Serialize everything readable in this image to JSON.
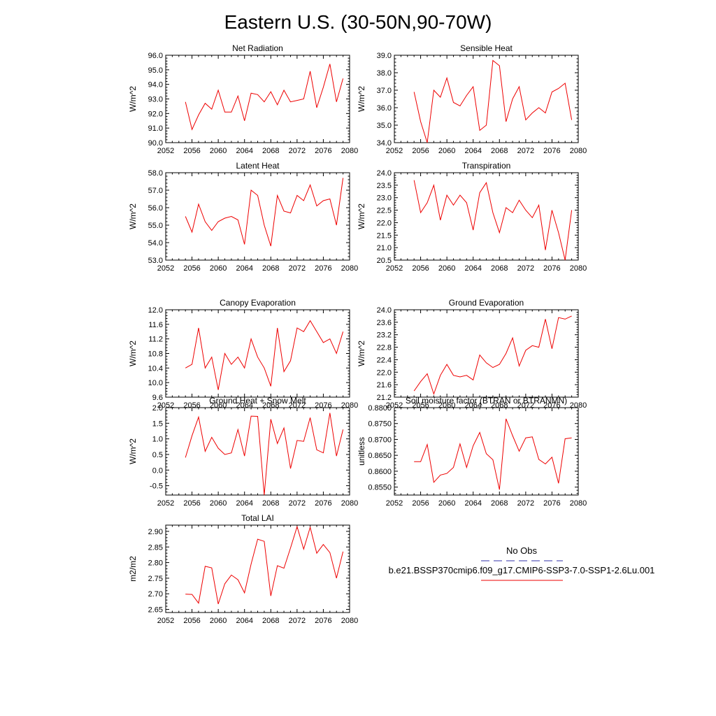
{
  "figure_title": "Eastern U.S. (30-50N,90-70W)",
  "legend": {
    "obs_label": "No Obs",
    "obs_color": "#3333aa",
    "case_label": "b.e21.BSSP370cmip6.f09_g17.CMIP6-SSP3-7.0-SSP1-2.6Lu.001",
    "case_color": "#ee0000"
  },
  "chart_data": [
    {
      "type": "line",
      "title": "Net Radiation",
      "ylabel": "W/m^2",
      "xlim": [
        2052,
        2080
      ],
      "ylim": [
        90,
        96
      ],
      "xticks": [
        2052,
        2056,
        2060,
        2064,
        2068,
        2072,
        2076,
        2080
      ],
      "yticks": [
        "90.0",
        "91.0",
        "92.0",
        "93.0",
        "94.0",
        "95.0",
        "96.0"
      ],
      "series": [
        {
          "color": "#ee0000",
          "x": [
            2055,
            2056,
            2057,
            2058,
            2059,
            2060,
            2061,
            2062,
            2063,
            2064,
            2065,
            2066,
            2067,
            2068,
            2069,
            2070,
            2071,
            2072,
            2073,
            2074,
            2075,
            2076,
            2077,
            2078,
            2079
          ],
          "y": [
            92.8,
            90.9,
            91.9,
            92.7,
            92.3,
            93.6,
            92.1,
            92.1,
            93.2,
            91.5,
            93.4,
            93.3,
            92.8,
            93.5,
            92.6,
            93.6,
            92.8,
            92.9,
            93.0,
            94.9,
            92.4,
            93.8,
            95.4,
            92.8,
            94.4
          ]
        }
      ]
    },
    {
      "type": "line",
      "title": "Sensible Heat",
      "ylabel": "W/m^2",
      "xlim": [
        2052,
        2080
      ],
      "ylim": [
        34,
        39
      ],
      "xticks": [
        2052,
        2056,
        2060,
        2064,
        2068,
        2072,
        2076,
        2080
      ],
      "yticks": [
        "34.0",
        "35.0",
        "36.0",
        "37.0",
        "38.0",
        "39.0"
      ],
      "series": [
        {
          "color": "#ee0000",
          "x": [
            2055,
            2056,
            2057,
            2058,
            2059,
            2060,
            2061,
            2062,
            2063,
            2064,
            2065,
            2066,
            2067,
            2068,
            2069,
            2070,
            2071,
            2072,
            2073,
            2074,
            2075,
            2076,
            2077,
            2078,
            2079
          ],
          "y": [
            36.9,
            35.2,
            34.0,
            37.0,
            36.6,
            37.7,
            36.3,
            36.1,
            36.7,
            37.2,
            34.7,
            35.0,
            38.7,
            38.4,
            35.2,
            36.5,
            37.2,
            35.3,
            35.7,
            36.0,
            35.7,
            36.9,
            37.1,
            37.4,
            35.3
          ]
        }
      ]
    },
    {
      "type": "line",
      "title": "Latent Heat",
      "ylabel": "W/m^2",
      "xlim": [
        2052,
        2080
      ],
      "ylim": [
        53,
        58
      ],
      "xticks": [
        2052,
        2056,
        2060,
        2064,
        2068,
        2072,
        2076,
        2080
      ],
      "yticks": [
        "53.0",
        "54.0",
        "55.0",
        "56.0",
        "57.0",
        "58.0"
      ],
      "series": [
        {
          "color": "#ee0000",
          "x": [
            2055,
            2056,
            2057,
            2058,
            2059,
            2060,
            2061,
            2062,
            2063,
            2064,
            2065,
            2066,
            2067,
            2068,
            2069,
            2070,
            2071,
            2072,
            2073,
            2074,
            2075,
            2076,
            2077,
            2078,
            2079
          ],
          "y": [
            55.5,
            54.6,
            56.2,
            55.2,
            54.7,
            55.2,
            55.4,
            55.5,
            55.3,
            53.9,
            57.0,
            56.7,
            55.0,
            53.8,
            56.7,
            55.8,
            55.7,
            56.7,
            56.4,
            57.3,
            56.1,
            56.4,
            56.5,
            55.0,
            57.7
          ]
        }
      ]
    },
    {
      "type": "line",
      "title": "Transpiration",
      "ylabel": "W/m^2",
      "xlim": [
        2052,
        2080
      ],
      "ylim": [
        20.5,
        24
      ],
      "xticks": [
        2052,
        2056,
        2060,
        2064,
        2068,
        2072,
        2076,
        2080
      ],
      "yticks": [
        "20.5",
        "21.0",
        "21.5",
        "22.0",
        "22.5",
        "23.0",
        "23.5",
        "24.0"
      ],
      "series": [
        {
          "color": "#ee0000",
          "x": [
            2055,
            2056,
            2057,
            2058,
            2059,
            2060,
            2061,
            2062,
            2063,
            2064,
            2065,
            2066,
            2067,
            2068,
            2069,
            2070,
            2071,
            2072,
            2073,
            2074,
            2075,
            2076,
            2077,
            2078,
            2079
          ],
          "y": [
            23.7,
            22.4,
            22.8,
            23.5,
            22.1,
            23.1,
            22.7,
            23.1,
            22.8,
            21.7,
            23.2,
            23.6,
            22.4,
            21.6,
            22.6,
            22.4,
            22.9,
            22.5,
            22.2,
            22.7,
            20.9,
            22.5,
            21.6,
            20.5,
            22.5
          ]
        }
      ]
    },
    {
      "type": "line",
      "title": "Canopy Evaporation",
      "ylabel": "W/m^2",
      "xlim": [
        2052,
        2080
      ],
      "ylim": [
        9.6,
        12
      ],
      "xticks": [
        2052,
        2056,
        2060,
        2064,
        2068,
        2072,
        2076,
        2080
      ],
      "yticks": [
        "9.6",
        "10.0",
        "10.4",
        "10.8",
        "11.2",
        "11.6",
        "12.0"
      ],
      "series": [
        {
          "color": "#ee0000",
          "x": [
            2055,
            2056,
            2057,
            2058,
            2059,
            2060,
            2061,
            2062,
            2063,
            2064,
            2065,
            2066,
            2067,
            2068,
            2069,
            2070,
            2071,
            2072,
            2073,
            2074,
            2075,
            2076,
            2077,
            2078,
            2079
          ],
          "y": [
            10.4,
            10.5,
            11.5,
            10.4,
            10.7,
            9.8,
            10.8,
            10.5,
            10.7,
            10.4,
            11.2,
            10.7,
            10.4,
            9.9,
            11.5,
            10.3,
            10.6,
            11.5,
            11.4,
            11.7,
            11.4,
            11.1,
            11.2,
            10.8,
            11.4
          ]
        }
      ]
    },
    {
      "type": "line",
      "title": "Ground Evaporation",
      "ylabel": "W/m^2",
      "xlim": [
        2052,
        2080
      ],
      "ylim": [
        21.2,
        24
      ],
      "xticks": [
        2052,
        2056,
        2060,
        2064,
        2068,
        2072,
        2076,
        2080
      ],
      "yticks": [
        "21.2",
        "21.6",
        "22.0",
        "22.4",
        "22.8",
        "23.2",
        "23.6",
        "24.0"
      ],
      "series": [
        {
          "color": "#ee0000",
          "x": [
            2055,
            2056,
            2057,
            2058,
            2059,
            2060,
            2061,
            2062,
            2063,
            2064,
            2065,
            2066,
            2067,
            2068,
            2069,
            2070,
            2071,
            2072,
            2073,
            2074,
            2075,
            2076,
            2077,
            2078,
            2079
          ],
          "y": [
            21.4,
            21.7,
            21.95,
            21.3,
            21.9,
            22.25,
            21.9,
            21.85,
            21.9,
            21.75,
            22.55,
            22.3,
            22.15,
            22.25,
            22.6,
            23.1,
            22.2,
            22.7,
            22.85,
            22.8,
            23.7,
            22.75,
            23.75,
            23.7,
            23.8
          ]
        }
      ]
    },
    {
      "type": "line",
      "title": "Ground Heat + Snow Melt",
      "ylabel": "W/m^2",
      "xlim": [
        2052,
        2080
      ],
      "ylim": [
        -0.8,
        2
      ],
      "xticks": [
        2052,
        2056,
        2060,
        2064,
        2068,
        2072,
        2076,
        2080
      ],
      "yticks": [
        "-0.5",
        "0.0",
        "0.5",
        "1.0",
        "1.5",
        "2.0"
      ],
      "series": [
        {
          "color": "#ee0000",
          "x": [
            2055,
            2056,
            2057,
            2058,
            2059,
            2060,
            2061,
            2062,
            2063,
            2064,
            2065,
            2066,
            2067,
            2068,
            2069,
            2070,
            2071,
            2072,
            2073,
            2074,
            2075,
            2076,
            2077,
            2078,
            2079
          ],
          "y": [
            0.4,
            1.1,
            1.7,
            0.6,
            1.05,
            0.7,
            0.5,
            0.55,
            1.3,
            0.45,
            1.73,
            1.72,
            -0.8,
            1.63,
            0.85,
            1.35,
            0.05,
            0.95,
            0.92,
            1.68,
            0.65,
            0.55,
            1.83,
            0.45,
            1.3
          ]
        }
      ]
    },
    {
      "type": "line",
      "title": "Soil moisture factor (BTRAN or BTRANMN)",
      "ylabel": "unitless",
      "xlim": [
        2052,
        2080
      ],
      "ylim": [
        0.8525,
        0.88
      ],
      "xticks": [
        2052,
        2056,
        2060,
        2064,
        2068,
        2072,
        2076,
        2080
      ],
      "yticks": [
        "0.8550",
        "0.8600",
        "0.8650",
        "0.8700",
        "0.8750",
        "0.8800"
      ],
      "series": [
        {
          "color": "#ee0000",
          "x": [
            2055,
            2056,
            2057,
            2058,
            2059,
            2060,
            2061,
            2062,
            2063,
            2064,
            2065,
            2066,
            2067,
            2068,
            2069,
            2070,
            2071,
            2072,
            2073,
            2074,
            2075,
            2076,
            2077,
            2078,
            2079
          ],
          "y": [
            0.863,
            0.863,
            0.8684,
            0.8565,
            0.8588,
            0.8593,
            0.8612,
            0.8686,
            0.8612,
            0.868,
            0.8722,
            0.8655,
            0.8636,
            0.8542,
            0.8765,
            0.8712,
            0.8663,
            0.8705,
            0.8708,
            0.8637,
            0.8623,
            0.8644,
            0.8562,
            0.8702,
            0.8705
          ]
        }
      ]
    },
    {
      "type": "line",
      "title": "Total LAI",
      "ylabel": "m2/m2",
      "xlim": [
        2052,
        2080
      ],
      "ylim": [
        2.64,
        2.92
      ],
      "xticks": [
        2052,
        2056,
        2060,
        2064,
        2068,
        2072,
        2076,
        2080
      ],
      "yticks": [
        "2.65",
        "2.70",
        "2.75",
        "2.80",
        "2.85",
        "2.90"
      ],
      "series": [
        {
          "color": "#ee0000",
          "x": [
            2055,
            2056,
            2057,
            2058,
            2059,
            2060,
            2061,
            2062,
            2063,
            2064,
            2065,
            2066,
            2067,
            2068,
            2069,
            2070,
            2071,
            2072,
            2073,
            2074,
            2075,
            2076,
            2077,
            2078,
            2079
          ],
          "y": [
            2.699,
            2.698,
            2.67,
            2.788,
            2.783,
            2.667,
            2.732,
            2.76,
            2.745,
            2.703,
            2.795,
            2.875,
            2.868,
            2.693,
            2.79,
            2.782,
            2.847,
            2.915,
            2.843,
            2.913,
            2.83,
            2.858,
            2.832,
            2.75,
            2.835
          ]
        }
      ]
    }
  ]
}
